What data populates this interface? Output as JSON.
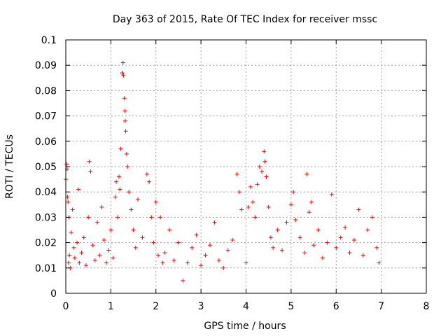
{
  "chart_data": {
    "type": "scatter",
    "title": "Day 363 of 2015, Rate Of TEC Index for receiver mssc",
    "xlabel": "GPS time / hours",
    "ylabel": "ROTI / TECUs",
    "xlim": [
      0,
      8
    ],
    "ylim": [
      0,
      0.1
    ],
    "grid": true,
    "marker": "+",
    "color": "#ff0000",
    "xticks": [
      "0",
      "1",
      "2",
      "3",
      "4",
      "5",
      "6",
      "7",
      "8"
    ],
    "yticks": [
      "0",
      "0.01",
      "0.02",
      "0.03",
      "0.04",
      "0.05",
      "0.06",
      "0.07",
      "0.08",
      "0.09",
      "0.1"
    ],
    "series": [
      {
        "name": "ROTI",
        "x": [
          0.0,
          0.02,
          0.03,
          0.04,
          0.05,
          0.06,
          0.07,
          0.08,
          0.1,
          0.12,
          0.15,
          0.18,
          0.2,
          0.25,
          0.28,
          0.3,
          0.35,
          0.4,
          0.45,
          0.5,
          0.52,
          0.55,
          0.6,
          0.65,
          0.7,
          0.75,
          0.8,
          0.85,
          0.9,
          0.95,
          1.0,
          1.05,
          1.1,
          1.12,
          1.15,
          1.18,
          1.2,
          1.22,
          1.25,
          1.27,
          1.28,
          1.3,
          1.31,
          1.32,
          1.33,
          1.35,
          1.37,
          1.4,
          1.45,
          1.5,
          1.55,
          1.6,
          1.7,
          1.8,
          1.85,
          1.9,
          1.95,
          2.0,
          2.05,
          2.1,
          2.15,
          2.2,
          2.3,
          2.4,
          2.5,
          2.6,
          2.7,
          2.8,
          2.9,
          3.0,
          3.1,
          3.2,
          3.3,
          3.4,
          3.5,
          3.6,
          3.7,
          3.8,
          3.85,
          3.9,
          4.0,
          4.05,
          4.1,
          4.15,
          4.2,
          4.25,
          4.3,
          4.35,
          4.4,
          4.42,
          4.45,
          4.5,
          4.55,
          4.6,
          4.7,
          4.8,
          4.9,
          5.0,
          5.05,
          5.1,
          5.2,
          5.3,
          5.35,
          5.4,
          5.45,
          5.5,
          5.6,
          5.7,
          5.8,
          5.9,
          6.0,
          6.1,
          6.2,
          6.3,
          6.4,
          6.5,
          6.6,
          6.7,
          6.8,
          6.9,
          6.95
        ],
        "y": [
          0.045,
          0.051,
          0.049,
          0.038,
          0.036,
          0.012,
          0.03,
          0.015,
          0.01,
          0.024,
          0.033,
          0.018,
          0.014,
          0.02,
          0.041,
          0.012,
          0.016,
          0.022,
          0.011,
          0.03,
          0.052,
          0.048,
          0.019,
          0.013,
          0.028,
          0.015,
          0.034,
          0.021,
          0.012,
          0.017,
          0.025,
          0.014,
          0.038,
          0.044,
          0.03,
          0.046,
          0.041,
          0.057,
          0.087,
          0.091,
          0.086,
          0.077,
          0.072,
          0.068,
          0.064,
          0.055,
          0.05,
          0.04,
          0.033,
          0.025,
          0.018,
          0.037,
          0.022,
          0.047,
          0.044,
          0.03,
          0.02,
          0.036,
          0.015,
          0.03,
          0.012,
          0.016,
          0.025,
          0.013,
          0.02,
          0.005,
          0.012,
          0.018,
          0.023,
          0.011,
          0.015,
          0.019,
          0.028,
          0.013,
          0.01,
          0.017,
          0.021,
          0.047,
          0.04,
          0.033,
          0.012,
          0.034,
          0.042,
          0.036,
          0.03,
          0.043,
          0.05,
          0.048,
          0.056,
          0.052,
          0.046,
          0.034,
          0.022,
          0.018,
          0.025,
          0.017,
          0.028,
          0.035,
          0.04,
          0.029,
          0.022,
          0.016,
          0.047,
          0.032,
          0.036,
          0.019,
          0.025,
          0.014,
          0.02,
          0.039,
          0.018,
          0.022,
          0.026,
          0.016,
          0.021,
          0.033,
          0.015,
          0.025,
          0.03,
          0.018,
          0.012
        ]
      }
    ]
  }
}
